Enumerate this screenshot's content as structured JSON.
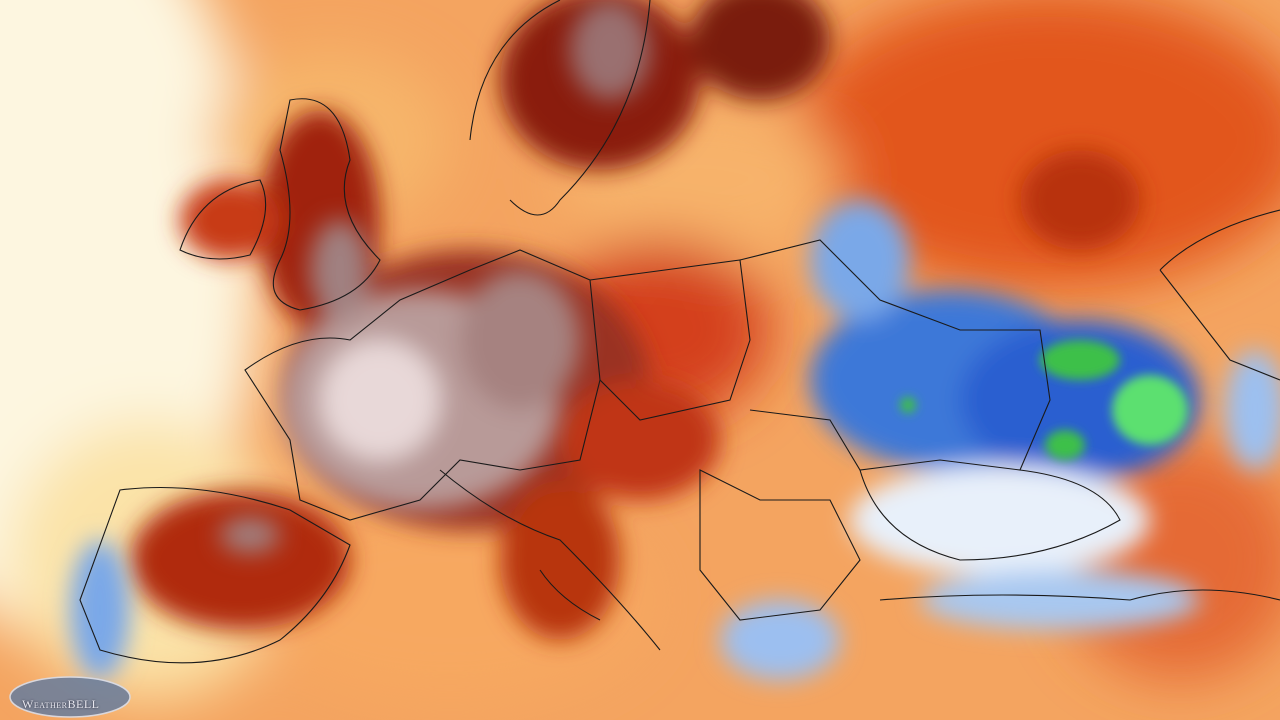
{
  "logo": {
    "text": "WeatherBELL"
  }
}
